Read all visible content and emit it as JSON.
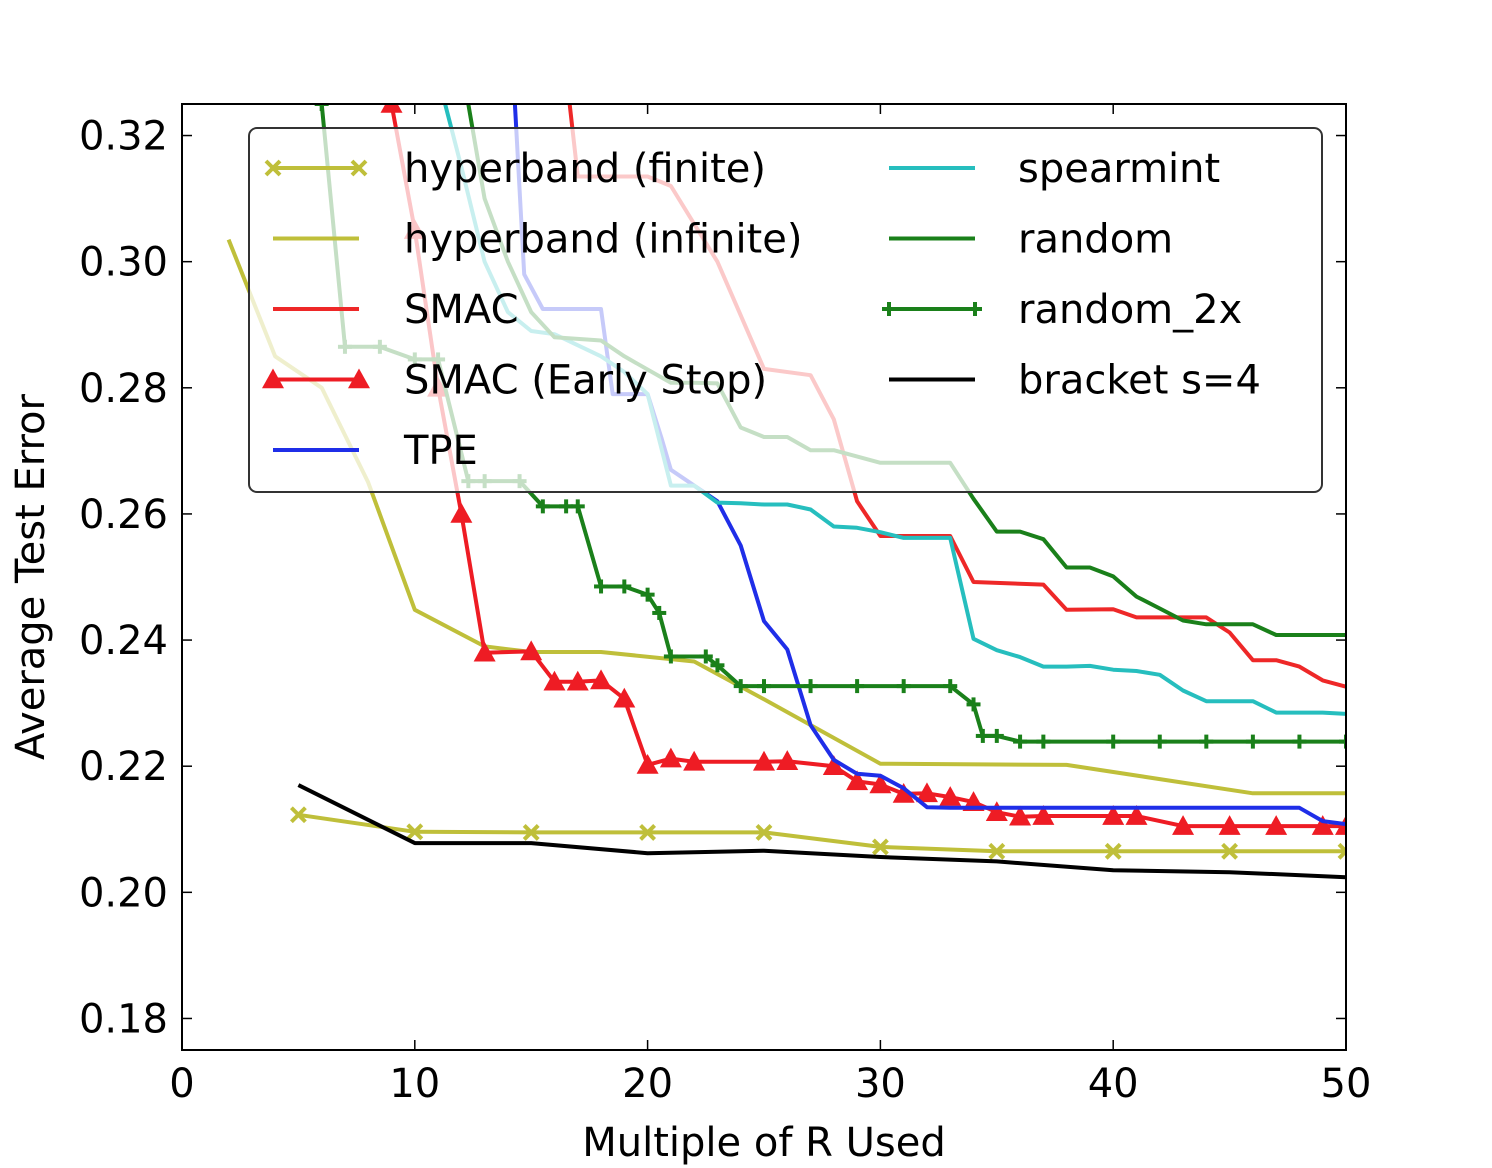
{
  "chart_data": {
    "type": "line",
    "title": "",
    "xlabel": "Multiple of R Used",
    "ylabel": "Average Test Error",
    "xlim": [
      0,
      50
    ],
    "ylim": [
      0.175,
      0.325
    ],
    "xticks": [
      0,
      10,
      20,
      30,
      40,
      50
    ],
    "xtick_labels": [
      "0",
      "10",
      "20",
      "30",
      "40",
      "50"
    ],
    "yticks": [
      0.18,
      0.2,
      0.22,
      0.24,
      0.26,
      0.28,
      0.3,
      0.32
    ],
    "ytick_labels": [
      "0.18",
      "0.20",
      "0.22",
      "0.24",
      "0.26",
      "0.28",
      "0.30",
      "0.32"
    ],
    "grid": false,
    "legend_position": "top",
    "series": [
      {
        "name": "hyperband (finite)",
        "color": "#bfbf3a",
        "marker": "x",
        "x": [
          5,
          10,
          15,
          20,
          25,
          30,
          35,
          40,
          45,
          50
        ],
        "y": [
          0.2123,
          0.2096,
          0.2095,
          0.2095,
          0.2095,
          0.2072,
          0.2065,
          0.2065,
          0.2065,
          0.2065
        ]
      },
      {
        "name": "hyperband (infinite)",
        "color": "#bfbf3a",
        "marker": "none",
        "x": [
          2,
          4,
          6,
          8,
          10,
          13,
          15,
          18,
          22,
          25,
          30,
          38,
          46,
          50
        ],
        "y": [
          0.3035,
          0.285,
          0.28,
          0.265,
          0.2448,
          0.239,
          0.2381,
          0.2381,
          0.2366,
          0.2306,
          0.2204,
          0.2202,
          0.2157,
          0.2157
        ]
      },
      {
        "name": "SMAC",
        "color": "#ee2828",
        "marker": "none",
        "x": [
          16.5,
          17,
          20,
          21,
          23,
          25,
          27,
          28,
          29,
          30,
          33,
          34,
          37,
          38,
          40,
          41,
          44,
          45,
          46,
          47,
          48,
          49,
          50
        ],
        "y": [
          0.33,
          0.3135,
          0.3135,
          0.312,
          0.3,
          0.283,
          0.282,
          0.275,
          0.262,
          0.2565,
          0.2565,
          0.2492,
          0.2488,
          0.2448,
          0.2449,
          0.2436,
          0.2436,
          0.2412,
          0.2368,
          0.2368,
          0.2358,
          0.2336,
          0.2326
        ]
      },
      {
        "name": "SMAC (Early Stop)",
        "color": "#ee1c24",
        "marker": "triangle",
        "x": [
          9,
          10,
          11,
          12,
          13,
          15,
          16,
          17,
          18,
          19,
          20,
          21,
          22,
          25,
          26,
          28,
          29,
          30,
          31,
          32,
          33,
          34,
          35,
          36,
          37,
          40,
          41,
          43,
          45,
          47,
          49,
          50
        ],
        "y": [
          0.325,
          0.305,
          0.28,
          0.26,
          0.238,
          0.2382,
          0.2334,
          0.2334,
          0.2336,
          0.2307,
          0.2202,
          0.2212,
          0.2207,
          0.2207,
          0.2208,
          0.22,
          0.2176,
          0.2171,
          0.2156,
          0.2157,
          0.2151,
          0.2143,
          0.2127,
          0.212,
          0.2121,
          0.2121,
          0.2121,
          0.2105,
          0.2105,
          0.2105,
          0.2105,
          0.2105
        ]
      },
      {
        "name": "TPE",
        "color": "#1f2ee8",
        "marker": "none",
        "x": [
          14.3,
          14.7,
          15.5,
          18,
          18.5,
          20,
          20.6,
          21,
          23,
          24,
          25,
          26,
          27,
          28,
          29,
          30,
          31,
          32,
          33,
          48,
          49,
          50
        ],
        "y": [
          0.325,
          0.298,
          0.2925,
          0.2925,
          0.279,
          0.279,
          0.272,
          0.267,
          0.262,
          0.255,
          0.243,
          0.2385,
          0.2265,
          0.221,
          0.2188,
          0.2185,
          0.2165,
          0.2135,
          0.2134,
          0.2134,
          0.2113,
          0.2108
        ]
      },
      {
        "name": "spearmint",
        "color": "#26bebe",
        "marker": "none",
        "x": [
          11.3,
          12,
          13,
          14,
          15,
          16,
          18,
          19,
          20,
          21,
          22,
          23,
          24,
          25,
          26,
          27,
          28,
          29,
          30,
          31,
          33,
          34,
          35,
          36,
          37,
          38,
          39,
          40,
          41,
          42,
          43,
          44,
          45,
          46,
          47,
          48,
          49,
          50
        ],
        "y": [
          0.325,
          0.315,
          0.3,
          0.292,
          0.289,
          0.2885,
          0.285,
          0.2825,
          0.279,
          0.2645,
          0.2645,
          0.2618,
          0.2617,
          0.2615,
          0.2615,
          0.2607,
          0.258,
          0.2578,
          0.2571,
          0.2562,
          0.2562,
          0.2402,
          0.2384,
          0.2373,
          0.2358,
          0.2358,
          0.2359,
          0.2353,
          0.2351,
          0.2345,
          0.232,
          0.2303,
          0.2303,
          0.2303,
          0.2285,
          0.2285,
          0.2285,
          0.2283
        ]
      },
      {
        "name": "random",
        "color": "#1a801a",
        "marker": "none",
        "x": [
          12.3,
          13,
          14,
          15,
          16,
          18,
          19,
          21,
          22,
          23,
          24,
          25,
          26,
          27,
          28,
          30,
          33,
          34,
          35,
          36,
          37,
          38,
          39,
          40,
          41,
          42,
          43,
          44,
          45,
          46,
          47,
          48,
          49,
          50
        ],
        "y": [
          0.325,
          0.31,
          0.3,
          0.292,
          0.288,
          0.2875,
          0.285,
          0.2808,
          0.2808,
          0.2807,
          0.2737,
          0.2722,
          0.2722,
          0.2701,
          0.2701,
          0.2681,
          0.2681,
          0.2624,
          0.2572,
          0.2572,
          0.256,
          0.2515,
          0.2515,
          0.2501,
          0.2469,
          0.245,
          0.2431,
          0.2425,
          0.2425,
          0.2425,
          0.2408,
          0.2408,
          0.2408,
          0.2408
        ]
      },
      {
        "name": "random_2x",
        "color": "#1a801a",
        "marker": "plus",
        "x": [
          6,
          7,
          8.5,
          10,
          11,
          12.3,
          13,
          14.5,
          15.5,
          16.5,
          17,
          18,
          19,
          20,
          20.5,
          21,
          22.5,
          23,
          24,
          25,
          27,
          29,
          31,
          33,
          34,
          34.4,
          35,
          36,
          37,
          40,
          42,
          44,
          46,
          48,
          50
        ],
        "y": [
          0.325,
          0.2865,
          0.2865,
          0.2845,
          0.2845,
          0.2652,
          0.2652,
          0.2652,
          0.2612,
          0.2612,
          0.2612,
          0.2485,
          0.2485,
          0.2472,
          0.2443,
          0.2374,
          0.2374,
          0.236,
          0.2327,
          0.2327,
          0.2327,
          0.2327,
          0.2327,
          0.2327,
          0.2298,
          0.2248,
          0.2248,
          0.2239,
          0.2239,
          0.2239,
          0.2239,
          0.2239,
          0.2239,
          0.2239,
          0.2239
        ]
      },
      {
        "name": "bracket s=4",
        "color": "#000000",
        "marker": "none",
        "x": [
          5,
          10,
          15,
          20,
          25,
          30,
          35,
          40,
          45,
          50
        ],
        "y": [
          0.217,
          0.2078,
          0.2078,
          0.2062,
          0.2066,
          0.2056,
          0.2049,
          0.2035,
          0.2032,
          0.2024
        ]
      }
    ],
    "legend_columns": [
      [
        "hyperband (finite)",
        "hyperband (infinite)",
        "SMAC",
        "SMAC (Early Stop)",
        "TPE"
      ],
      [
        "spearmint",
        "random",
        "random_2x",
        "bracket s=4"
      ]
    ]
  }
}
